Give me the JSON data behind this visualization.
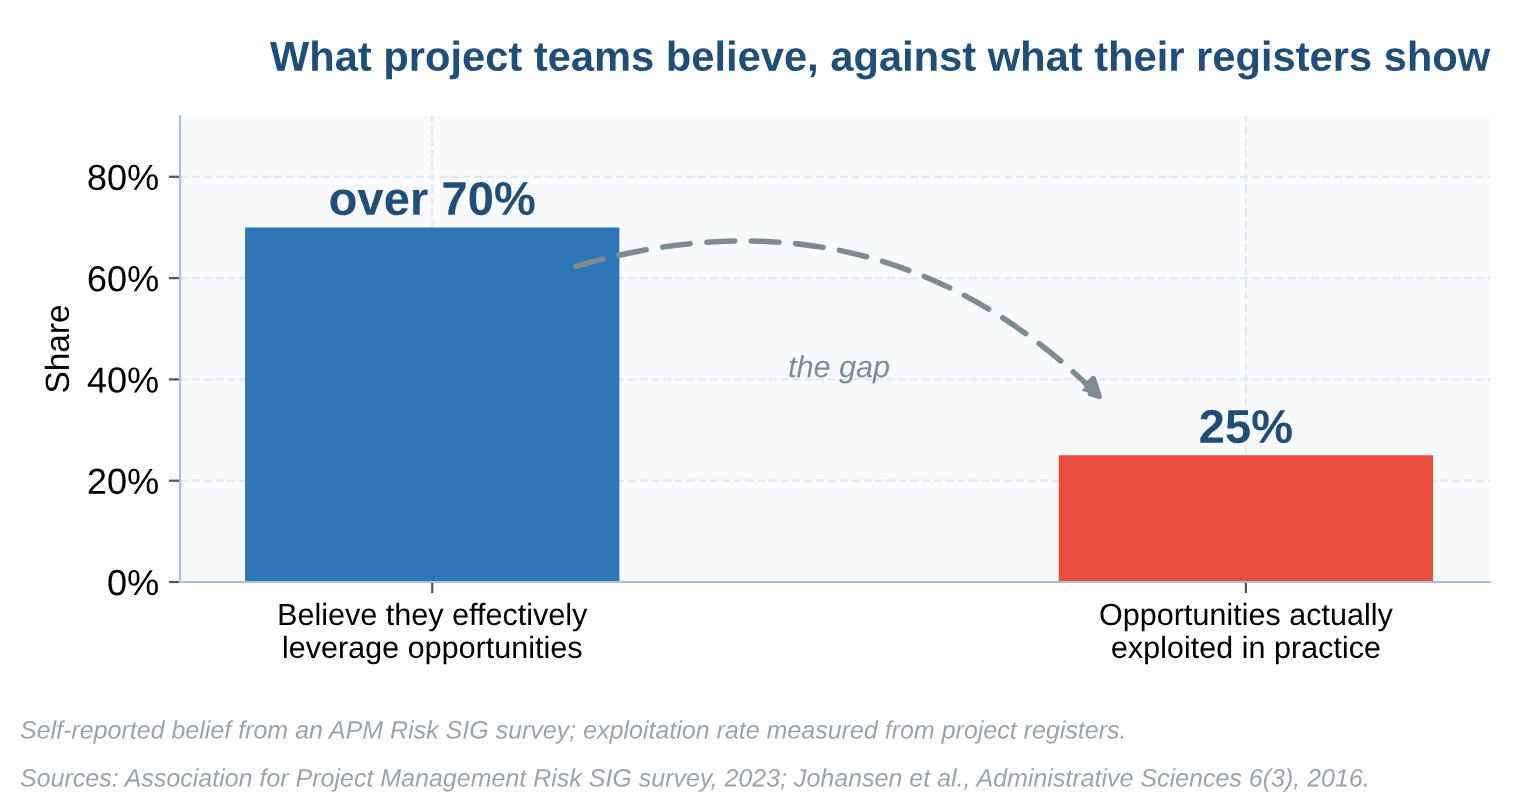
{
  "chart_data": {
    "type": "bar",
    "title": "What project teams believe, against what their registers show",
    "categories": [
      "Believe they effectively\nleverage opportunities",
      "Opportunities actually\nexploited in practice"
    ],
    "values": [
      70,
      25
    ],
    "colors": [
      "#2e75b6",
      "#e84c3d"
    ],
    "value_labels": [
      "over 70%",
      "25%"
    ],
    "ylabel": "Share",
    "ylim": [
      0,
      92
    ],
    "yticks": [
      {
        "value": 0,
        "label": "0%"
      },
      {
        "value": 20,
        "label": "20%"
      },
      {
        "value": 40,
        "label": "40%"
      },
      {
        "value": 60,
        "label": "60%"
      },
      {
        "value": 80,
        "label": "80%"
      }
    ],
    "grid": true,
    "annotations": [
      "the gap",
      "Self-reported belief from an APM Risk SIG survey; exploitation rate measured from project registers.",
      "Sources: Association for Project Management Risk SIG survey, 2023; Johansen et al., Administrative Sciences 6(3), 2016."
    ]
  }
}
